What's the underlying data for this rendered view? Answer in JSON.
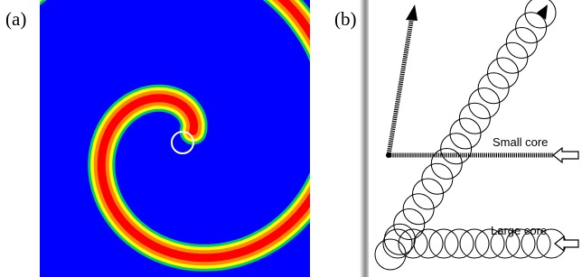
{
  "panels": [
    {
      "label": "(a)"
    },
    {
      "label": "(b)",
      "annotations": [
        "Small core",
        "Large core"
      ]
    }
  ]
}
